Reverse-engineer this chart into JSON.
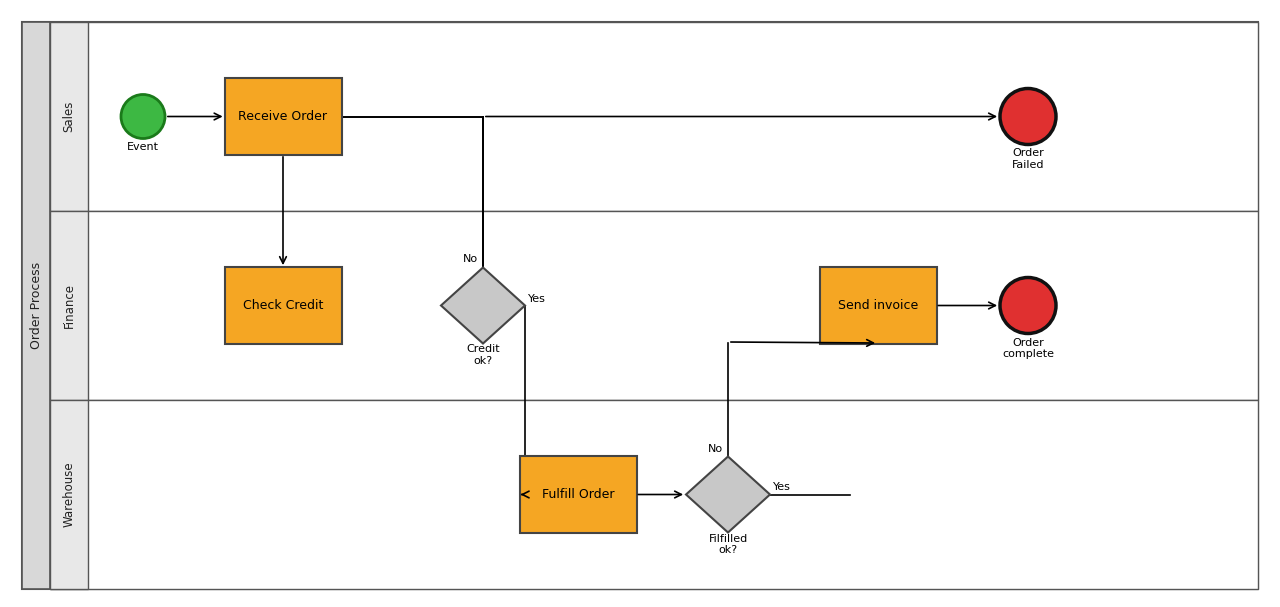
{
  "bg_color": "#ffffff",
  "pool_header_bg": "#d8d8d8",
  "lane_header_bg": "#e8e8e8",
  "lane_bg": "#ffffff",
  "task_fill": "#f5a623",
  "task_edge": "#444444",
  "diamond_fill": "#c8c8c8",
  "diamond_edge": "#444444",
  "start_fill": "#3db843",
  "start_edge": "#1a7a1a",
  "end_fill": "#e03030",
  "end_edge": "#111111",
  "arrow_color": "#000000",
  "line_color": "#000000",
  "pool_label": "Order Process",
  "lanes": [
    "Sales",
    "Finance",
    "Warehouse"
  ],
  "task_fontsize": 9,
  "label_fontsize": 8,
  "lane_fontsize": 8.5,
  "pool_fontsize": 9
}
